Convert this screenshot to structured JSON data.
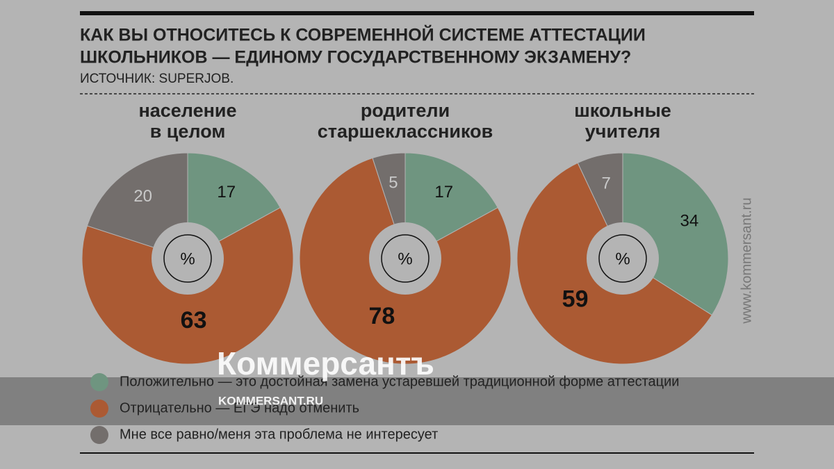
{
  "header": {
    "title_lines": [
      "КАК ВЫ ОТНОСИТЕСЬ К СОВРЕМЕННОЙ СИСТЕМЕ АТТЕСТАЦИИ",
      "ШКОЛЬНИКОВ — ЕДИНОМУ ГОСУДАРСТВЕННОМУ ЭКЗАМЕНУ?"
    ],
    "source": "ИСТОЧНИК: SUPERJOB."
  },
  "watermark": {
    "brand": "Коммерсантъ",
    "site": "KOMMERSANT.RU",
    "side": "www.kommersant.ru"
  },
  "chart_data": [
    {
      "type": "pie",
      "title_lines": [
        "население",
        "в целом"
      ],
      "unit": "%",
      "categories": [
        "Положительно — это достойная замена устаревшей традиционной форме аттестации",
        "Отрицательно — ЕГЭ надо отменить",
        "Мне все равно/меня эта проблема не интересует"
      ],
      "values": [
        17,
        63,
        20
      ],
      "colors": [
        "#6f9580",
        "#ab5a33",
        "#736e6c"
      ]
    },
    {
      "type": "pie",
      "title_lines": [
        "родители",
        "старшеклассников"
      ],
      "unit": "%",
      "categories": [
        "Положительно — это достойная замена устаревшей традиционной форме аттестации",
        "Отрицательно — ЕГЭ надо отменить",
        "Мне все равно/меня эта проблема не интересует"
      ],
      "values": [
        17,
        78,
        5
      ],
      "colors": [
        "#6f9580",
        "#ab5a33",
        "#736e6c"
      ]
    },
    {
      "type": "pie",
      "title_lines": [
        "школьные",
        "учителя"
      ],
      "unit": "%",
      "categories": [
        "Положительно — это достойная замена устаревшей традиционной форме аттестации",
        "Отрицательно — ЕГЭ надо отменить",
        "Мне все равно/меня эта проблема не интересует"
      ],
      "values": [
        34,
        59,
        7
      ],
      "colors": [
        "#6f9580",
        "#ab5a33",
        "#736e6c"
      ]
    }
  ]
}
